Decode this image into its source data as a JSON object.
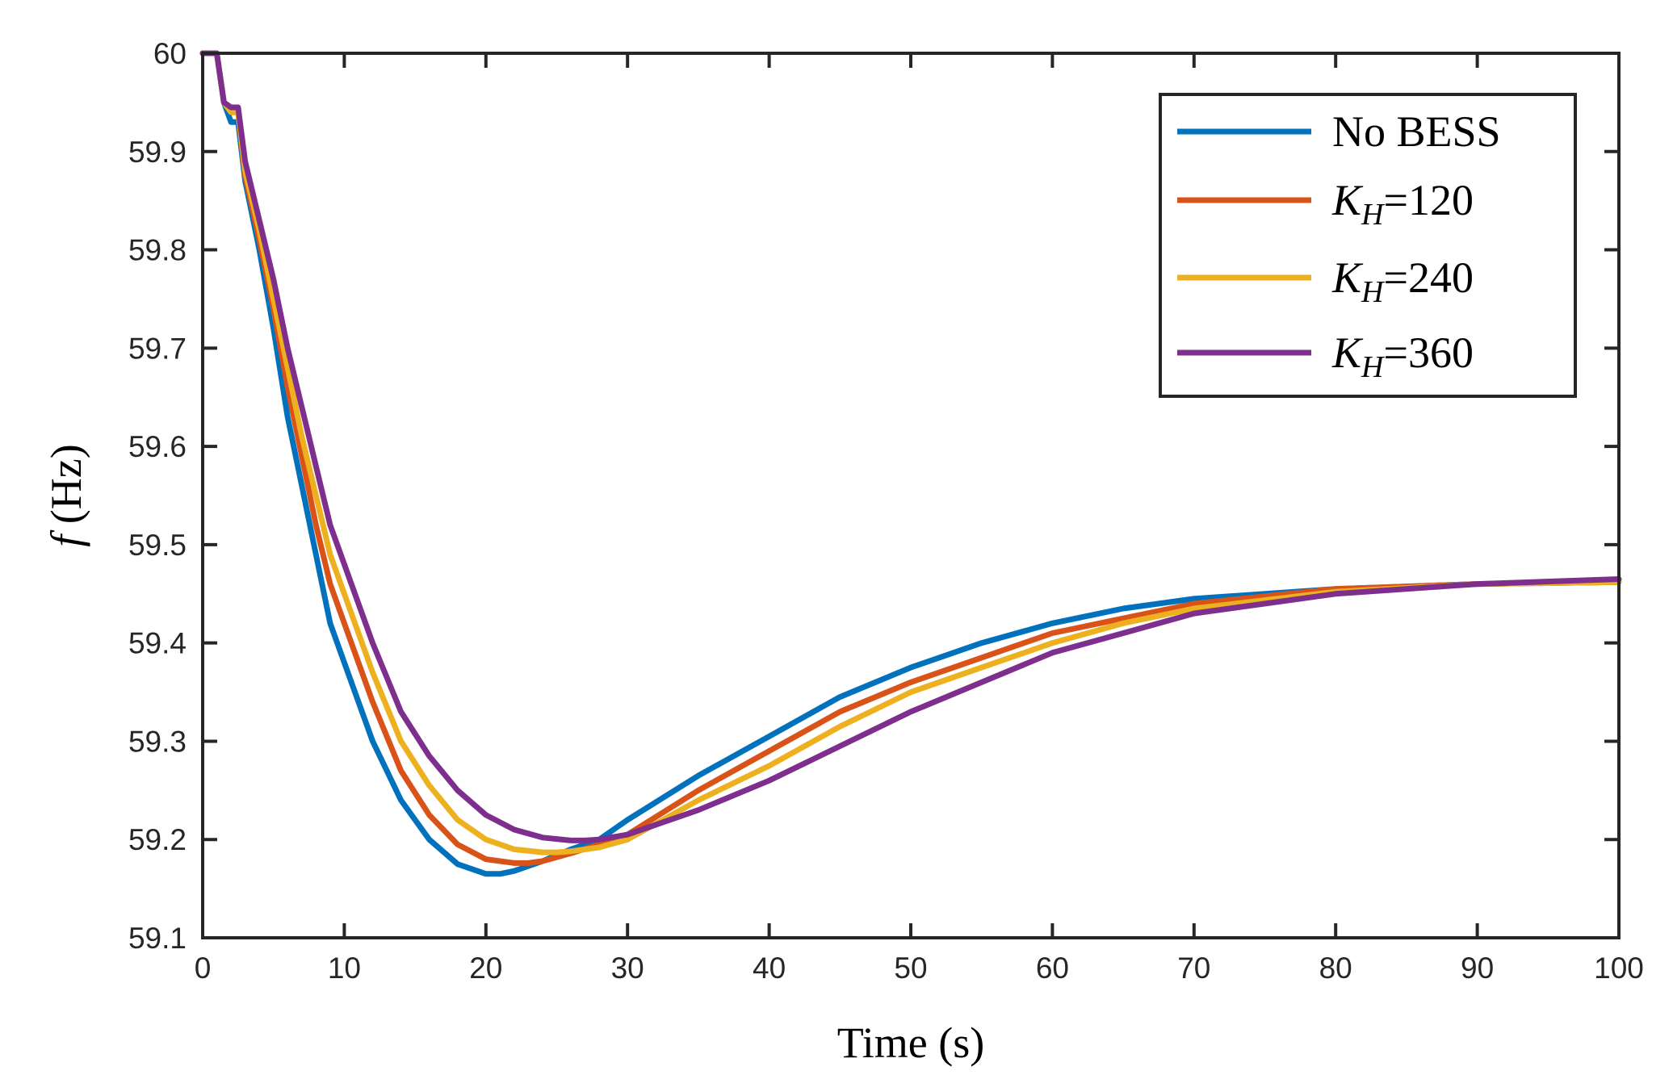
{
  "chart_data": {
    "type": "line",
    "title": "",
    "xlabel": "Time (s)",
    "ylabel_symbol": "f",
    "ylabel_unit": " (Hz)",
    "xlim": [
      0,
      100
    ],
    "ylim": [
      59.1,
      60
    ],
    "xticks": [
      0,
      10,
      20,
      30,
      40,
      50,
      60,
      70,
      80,
      90,
      100
    ],
    "yticks": [
      59.1,
      59.2,
      59.3,
      59.4,
      59.5,
      59.6,
      59.7,
      59.8,
      59.9,
      60
    ],
    "xtick_labels": [
      "0",
      "10",
      "20",
      "30",
      "40",
      "50",
      "60",
      "70",
      "80",
      "90",
      "100"
    ],
    "ytick_labels": [
      "59.1",
      "59.2",
      "59.3",
      "59.4",
      "59.5",
      "59.6",
      "59.7",
      "59.8",
      "59.9",
      "60"
    ],
    "grid": false,
    "legend_position": "top-right",
    "series": [
      {
        "name": "No BESS",
        "legend_main": "No BESS",
        "legend_sub": "",
        "legend_tail": "",
        "color": "#0072BD",
        "x": [
          0,
          0.5,
          1,
          1.5,
          2,
          2.5,
          3,
          4,
          5,
          6,
          7,
          8,
          9,
          10,
          12,
          14,
          16,
          18,
          20,
          21,
          22,
          24,
          26,
          28,
          30,
          35,
          40,
          45,
          50,
          55,
          60,
          65,
          70,
          80,
          90,
          100
        ],
        "values": [
          60,
          60,
          60,
          59.95,
          59.93,
          59.93,
          59.87,
          59.8,
          59.72,
          59.63,
          59.56,
          59.49,
          59.42,
          59.38,
          59.3,
          59.24,
          59.2,
          59.175,
          59.165,
          59.165,
          59.168,
          59.178,
          59.19,
          59.2,
          59.22,
          59.265,
          59.305,
          59.345,
          59.375,
          59.4,
          59.42,
          59.435,
          59.445,
          59.455,
          59.46,
          59.462
        ]
      },
      {
        "name": "KH=120",
        "legend_main": "K",
        "legend_sub": "H",
        "legend_tail": "=120",
        "color": "#D95319",
        "x": [
          0,
          0.5,
          1,
          1.5,
          2,
          2.5,
          3,
          4,
          5,
          6,
          7,
          8,
          9,
          10,
          12,
          14,
          16,
          18,
          20,
          22,
          23,
          24,
          26,
          28,
          30,
          35,
          40,
          45,
          50,
          55,
          60,
          65,
          70,
          80,
          90,
          100
        ],
        "values": [
          60,
          60,
          60,
          59.95,
          59.94,
          59.94,
          59.875,
          59.81,
          59.74,
          59.66,
          59.59,
          59.52,
          59.46,
          59.42,
          59.34,
          59.27,
          59.225,
          59.195,
          59.18,
          59.176,
          59.176,
          59.178,
          59.186,
          59.195,
          59.205,
          59.25,
          59.29,
          59.33,
          59.36,
          59.385,
          59.41,
          59.425,
          59.44,
          59.455,
          59.46,
          59.462
        ]
      },
      {
        "name": "KH=240",
        "legend_main": "K",
        "legend_sub": "H",
        "legend_tail": "=240",
        "color": "#EDB120",
        "x": [
          0,
          0.5,
          1,
          1.5,
          2,
          2.5,
          3,
          4,
          5,
          6,
          7,
          8,
          9,
          10,
          12,
          14,
          16,
          18,
          20,
          22,
          24,
          25,
          26,
          28,
          30,
          35,
          40,
          45,
          50,
          55,
          60,
          65,
          70,
          80,
          90,
          100
        ],
        "values": [
          60,
          60,
          60,
          59.95,
          59.94,
          59.94,
          59.88,
          59.82,
          59.75,
          59.68,
          59.61,
          59.55,
          59.49,
          59.45,
          59.37,
          59.3,
          59.255,
          59.22,
          59.2,
          59.19,
          59.187,
          59.187,
          59.188,
          59.192,
          59.2,
          59.24,
          59.275,
          59.315,
          59.35,
          59.375,
          59.4,
          59.42,
          59.435,
          59.452,
          59.46,
          59.462
        ]
      },
      {
        "name": "KH=360",
        "legend_main": "K",
        "legend_sub": "H",
        "legend_tail": "=360",
        "color": "#7E2F8E",
        "x": [
          0,
          0.5,
          1,
          1.5,
          2,
          2.5,
          3,
          4,
          5,
          6,
          7,
          8,
          9,
          10,
          12,
          14,
          16,
          18,
          20,
          22,
          24,
          26,
          27,
          28,
          30,
          35,
          40,
          45,
          50,
          55,
          60,
          65,
          70,
          80,
          90,
          100
        ],
        "values": [
          60,
          60,
          60,
          59.95,
          59.945,
          59.945,
          59.89,
          59.83,
          59.77,
          59.7,
          59.64,
          59.58,
          59.52,
          59.48,
          59.4,
          59.33,
          59.285,
          59.25,
          59.225,
          59.21,
          59.202,
          59.199,
          59.199,
          59.2,
          59.205,
          59.23,
          59.26,
          59.295,
          59.33,
          59.36,
          59.39,
          59.41,
          59.43,
          59.45,
          59.46,
          59.465
        ]
      }
    ]
  }
}
